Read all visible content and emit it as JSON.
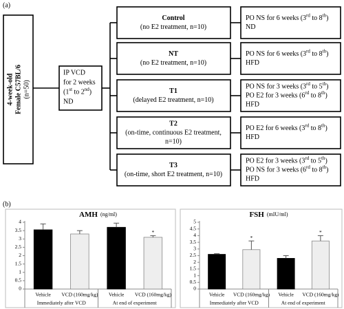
{
  "diagram": {
    "panel_label": "(a)",
    "source": {
      "lines": [
        "4-week-old",
        "Female C57BL/6"
      ],
      "note": "(n=50)"
    },
    "induction": {
      "lines": [
        "IP VCD",
        "for 2 weeks",
        "(1st to 2nd)",
        "ND"
      ]
    },
    "groups": [
      {
        "name": "Control",
        "lines": [
          "(no E2 treatment, n=10)"
        ],
        "outcome": [
          "PO NS for 6 weeks (3rd to 8th)",
          "ND"
        ]
      },
      {
        "name": "NT",
        "lines": [
          "(no E2 treatment, n=10)"
        ],
        "outcome": [
          "PO NS for 6 weeks (3rd to 8th)",
          "HFD"
        ]
      },
      {
        "name": "T1",
        "lines": [
          "(delayed E2 treatment, n=10)"
        ],
        "outcome": [
          "PO NS for 3 weeks (3rd to 5th)",
          "PO E2 for 3 weeks (6rd to 8th)",
          "HFD"
        ]
      },
      {
        "name": "T2",
        "lines": [
          "(on-time, continuous E2 treatment,",
          "n=10)"
        ],
        "outcome": [
          "PO E2 for 6 weeks (3rd to 8th)",
          "HFD"
        ]
      },
      {
        "name": "T3",
        "lines": [
          "(on-time, short E2 treatment, n=10)"
        ],
        "outcome": [
          "PO E2 for 3 weeks (3rd to 5th)",
          "PO NS for 3 weeks (6rd to 8th)",
          "HFD"
        ]
      }
    ]
  },
  "panel_b_label": "(b)",
  "chart_data": [
    {
      "type": "bar",
      "title": "AMH",
      "unit": "(ng/ml)",
      "categories": [
        "Vehicle",
        "VCD (160mg/kg)",
        "Vehicle",
        "VCD (160mg/kg)"
      ],
      "groups": [
        "Immediately after VCD",
        "At end of experiment"
      ],
      "values": [
        3.55,
        3.3,
        3.7,
        3.1
      ],
      "errors": [
        0.35,
        0.2,
        0.25,
        0.1
      ],
      "significance": [
        null,
        null,
        null,
        "*"
      ],
      "colors": [
        "#000000",
        "#eeeeee",
        "#000000",
        "#eeeeee"
      ],
      "ylim": [
        0,
        4
      ],
      "yticks": [
        0,
        0.5,
        1,
        1.5,
        2,
        2.5,
        3,
        3.5,
        4
      ]
    },
    {
      "type": "bar",
      "title": "FSH",
      "unit": "(mIU/ml)",
      "categories": [
        "Vehicle",
        "VCD (160mg/kg)",
        "Vehicle",
        "VCD (160mg/kg)"
      ],
      "groups": [
        "Immediately after VCD",
        "At end of experiment"
      ],
      "values": [
        2.6,
        2.95,
        2.3,
        3.6
      ],
      "errors": [
        0.05,
        0.65,
        0.2,
        0.4
      ],
      "significance": [
        null,
        "*",
        null,
        "*"
      ],
      "colors": [
        "#000000",
        "#eeeeee",
        "#000000",
        "#eeeeee"
      ],
      "ylim": [
        0,
        5
      ],
      "yticks": [
        0,
        0.5,
        1,
        1.5,
        2,
        2.5,
        3,
        3.5,
        4,
        4.5,
        5
      ]
    }
  ]
}
